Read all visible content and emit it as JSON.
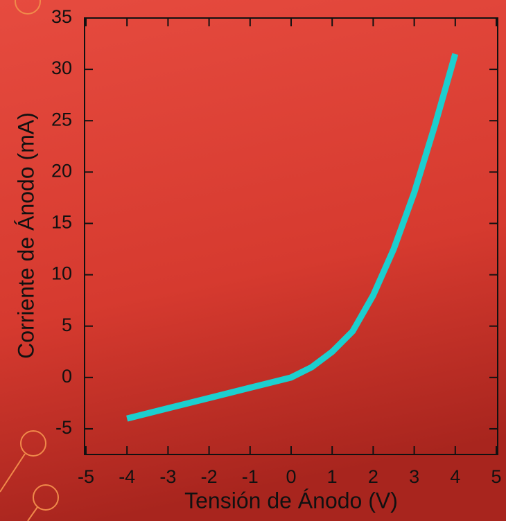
{
  "chart_data": {
    "type": "line",
    "xlabel": "Tensión de Ánodo (V)",
    "ylabel": "Corriente de Ánodo (mA)",
    "x": [
      -4,
      -3,
      -2,
      -1,
      0,
      0.5,
      1,
      1.5,
      2,
      2.5,
      3,
      3.5,
      4
    ],
    "series": [
      {
        "color": "#1ccfcf",
        "values": [
          -4,
          -3,
          -2,
          -1,
          0,
          1,
          2.5,
          4.5,
          8,
          12.5,
          18,
          24.5,
          31.5
        ]
      }
    ],
    "xlim": [
      -5,
      5
    ],
    "xticks": [
      -5,
      -4,
      -3,
      -2,
      -1,
      0,
      1,
      2,
      3,
      4,
      5
    ],
    "ylim": [
      -7.5,
      35
    ],
    "yticks": [
      -5,
      0,
      5,
      10,
      15,
      20,
      25,
      30,
      35
    ]
  }
}
